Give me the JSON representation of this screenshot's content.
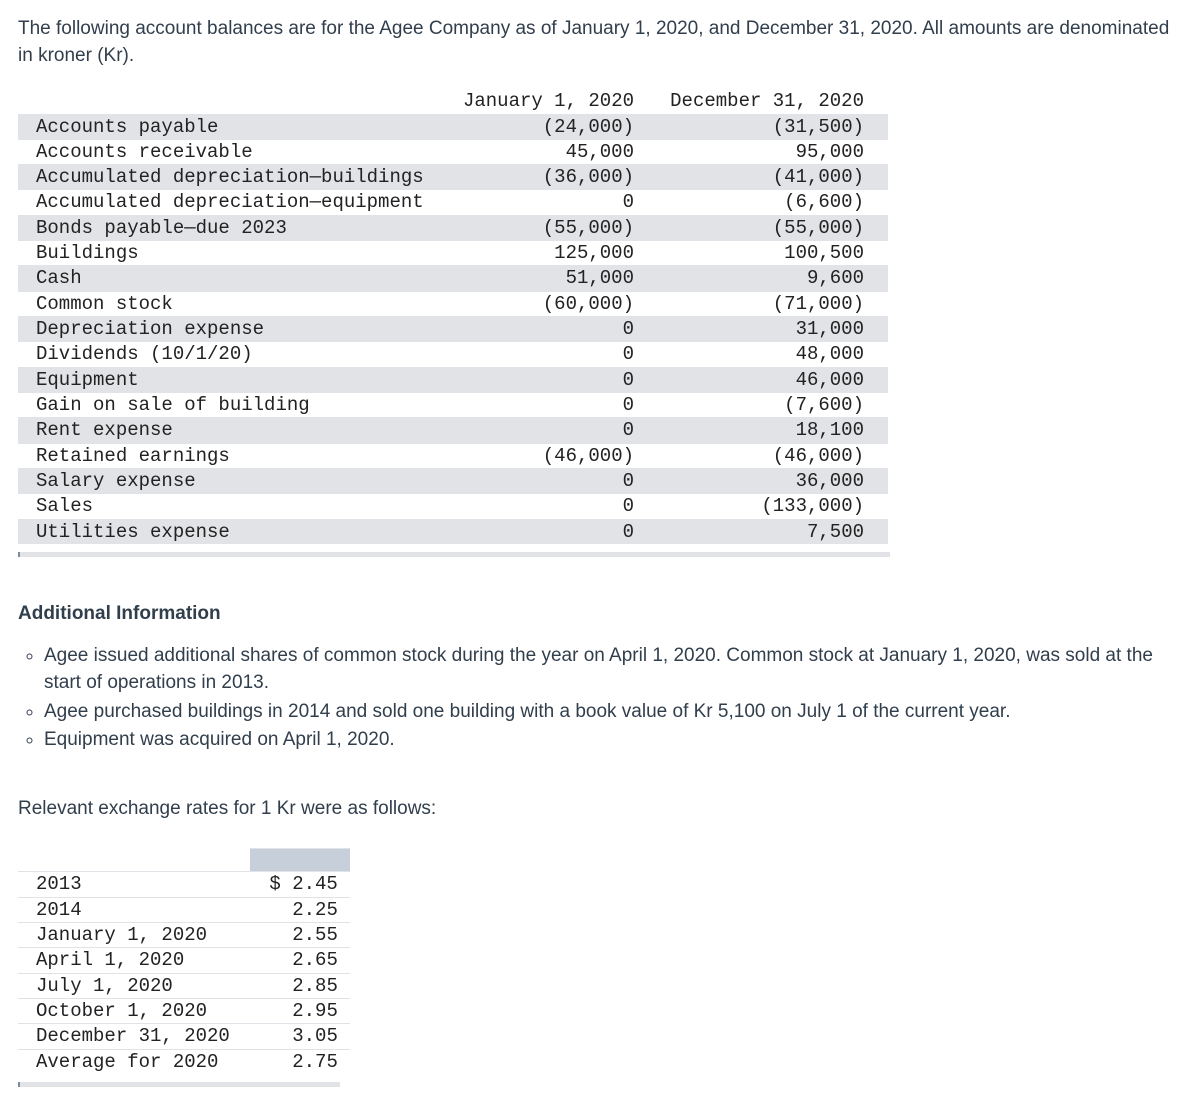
{
  "intro": "The following account balances are for the Agee Company as of January 1, 2020, and December 31, 2020. All amounts are denominated in kroner (Kr).",
  "balances": {
    "col1_header": "January 1, 2020",
    "col2_header": "December 31, 2020",
    "col_widths": {
      "label": 440,
      "c1": 200,
      "c2": 230
    },
    "row_stripe_color": "#e1e3e6",
    "border_color": "#e0e3e7",
    "font_family": "Courier New",
    "font_size": 19,
    "rows": [
      {
        "label": "Accounts payable",
        "c1": "(24,000)",
        "c2": "(31,500)"
      },
      {
        "label": "Accounts receivable",
        "c1": "45,000",
        "c2": "95,000"
      },
      {
        "label": "Accumulated depreciation—buildings",
        "c1": "(36,000)",
        "c2": "(41,000)"
      },
      {
        "label": "Accumulated depreciation—equipment",
        "c1": "0",
        "c2": "(6,600)"
      },
      {
        "label": "Bonds payable—due 2023",
        "c1": "(55,000)",
        "c2": "(55,000)"
      },
      {
        "label": "Buildings",
        "c1": "125,000",
        "c2": "100,500"
      },
      {
        "label": "Cash",
        "c1": "51,000",
        "c2": "9,600"
      },
      {
        "label": "Common stock",
        "c1": "(60,000)",
        "c2": "(71,000)"
      },
      {
        "label": "Depreciation expense",
        "c1": "0",
        "c2": "31,000"
      },
      {
        "label": "Dividends (10/1/20)",
        "c1": "0",
        "c2": "48,000"
      },
      {
        "label": "Equipment",
        "c1": "0",
        "c2": "46,000"
      },
      {
        "label": "Gain on sale of building",
        "c1": "0",
        "c2": "(7,600)"
      },
      {
        "label": "Rent expense",
        "c1": "0",
        "c2": "18,100"
      },
      {
        "label": "Retained earnings",
        "c1": "(46,000)",
        "c2": "(46,000)"
      },
      {
        "label": "Salary expense",
        "c1": "0",
        "c2": "36,000"
      },
      {
        "label": "Sales",
        "c1": "0",
        "c2": "(133,000)"
      },
      {
        "label": "Utilities expense",
        "c1": "0",
        "c2": "7,500"
      }
    ]
  },
  "additional_heading": "Additional Information",
  "additional_items": [
    "Agee issued additional shares of common stock during the year on April 1, 2020. Common stock at January 1, 2020, was sold at the start of operations in 2013.",
    "Agee purchased buildings in 2014 and sold one building with a book value of Kr 5,100 on July 1 of the current year.",
    "Equipment was acquired on April 1, 2020."
  ],
  "rates_lead": "Relevant exchange rates for 1 Kr were as follows:",
  "rates": {
    "col_widths": {
      "label": 220,
      "val": 100
    },
    "header_bg": "#c6cfda",
    "rows": [
      {
        "label": "2013",
        "val": "$ 2.45"
      },
      {
        "label": "2014",
        "val": "2.25"
      },
      {
        "label": "January 1, 2020",
        "val": "2.55"
      },
      {
        "label": "April 1, 2020",
        "val": "2.65"
      },
      {
        "label": "July 1, 2020",
        "val": "2.85"
      },
      {
        "label": "October 1, 2020",
        "val": "2.95"
      },
      {
        "label": "December 31, 2020",
        "val": "3.05"
      },
      {
        "label": "Average for 2020",
        "val": "2.75"
      }
    ]
  }
}
